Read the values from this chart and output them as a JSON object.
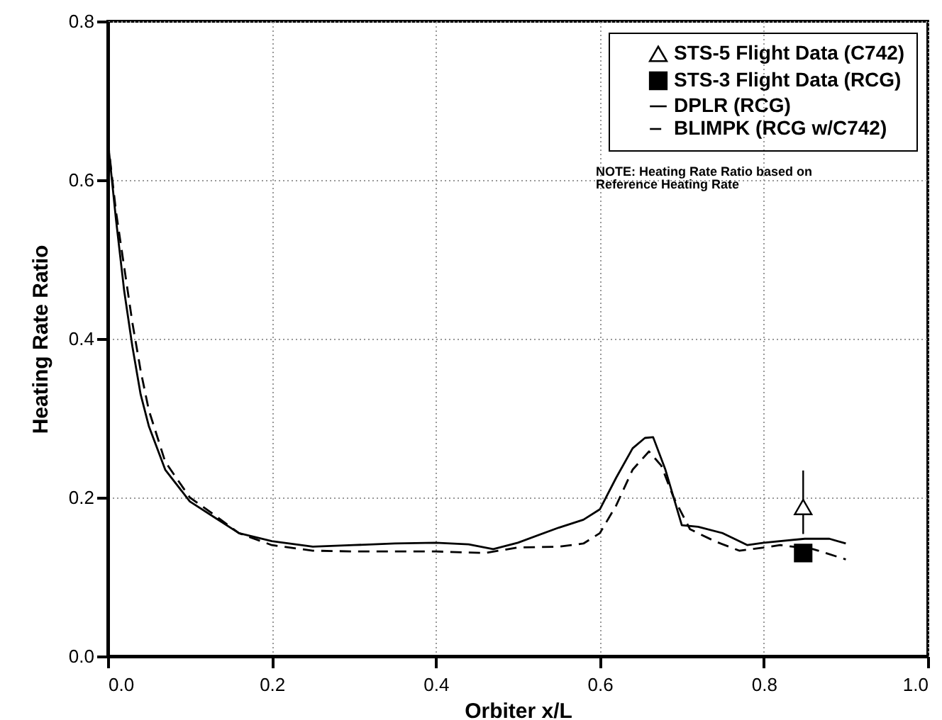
{
  "chart_data": {
    "type": "line",
    "xlabel": "Orbiter x/L",
    "ylabel": "Heating Rate Ratio",
    "xlim": [
      0,
      1
    ],
    "ylim": [
      0,
      0.8
    ],
    "xticks": [
      {
        "value": 0,
        "label": "0.0"
      },
      {
        "value": 0.2,
        "label": "0.2"
      },
      {
        "value": 0.4,
        "label": "0.4"
      },
      {
        "value": 0.6,
        "label": "0.6"
      },
      {
        "value": 0.8,
        "label": "0.8"
      },
      {
        "value": 1,
        "label": "1.0"
      }
    ],
    "yticks": [
      {
        "value": 0,
        "label": "0.0"
      },
      {
        "value": 0.2,
        "label": "0.2"
      },
      {
        "value": 0.4,
        "label": "0.4"
      },
      {
        "value": 0.6,
        "label": "0.6"
      },
      {
        "value": 0.8,
        "label": "0.8"
      }
    ],
    "grid": true,
    "legend": "top right",
    "annotations": [
      "NOTE: Heating Rate Ratio based on\nReference Heating Rate"
    ],
    "series": [
      {
        "name": "STS-5 Flight Data (C742)",
        "type": "scatter",
        "marker": "triangle",
        "color": "#000000",
        "x": [
          0.848
        ],
        "values": [
          0.188
        ],
        "errors": [
          [
            0.154,
            0.234
          ]
        ]
      },
      {
        "name": "STS-3 Flight Data (RCG)",
        "type": "scatter",
        "marker": "square",
        "color": "#000000",
        "x": [
          0.848
        ],
        "values": [
          0.13
        ],
        "errors": [
          [
            0.12,
            0.14
          ]
        ]
      },
      {
        "name": "DPLR (RCG)",
        "line_style": "solid",
        "color": "#000000",
        "x": [
          0,
          0.01,
          0.02,
          0.03,
          0.04,
          0.05,
          0.07,
          0.1,
          0.13,
          0.16,
          0.2,
          0.25,
          0.3,
          0.35,
          0.4,
          0.44,
          0.47,
          0.5,
          0.55,
          0.58,
          0.6,
          0.62,
          0.64,
          0.655,
          0.665,
          0.68,
          0.7,
          0.72,
          0.75,
          0.78,
          0.8,
          0.85,
          0.88,
          0.9
        ],
        "values": [
          0.65,
          0.55,
          0.46,
          0.39,
          0.33,
          0.29,
          0.235,
          0.195,
          0.175,
          0.155,
          0.145,
          0.138,
          0.14,
          0.142,
          0.143,
          0.141,
          0.135,
          0.143,
          0.162,
          0.172,
          0.185,
          0.225,
          0.262,
          0.275,
          0.276,
          0.235,
          0.165,
          0.163,
          0.155,
          0.14,
          0.143,
          0.148,
          0.148,
          0.142
        ]
      },
      {
        "name": "BLIMPK (RCG w/C742)",
        "line_style": "dashed",
        "color": "#000000",
        "x": [
          0,
          0.01,
          0.02,
          0.03,
          0.04,
          0.05,
          0.07,
          0.1,
          0.13,
          0.16,
          0.2,
          0.25,
          0.3,
          0.4,
          0.46,
          0.5,
          0.55,
          0.58,
          0.6,
          0.62,
          0.64,
          0.66,
          0.675,
          0.69,
          0.71,
          0.74,
          0.77,
          0.8,
          0.82,
          0.86,
          0.9
        ],
        "values": [
          0.65,
          0.56,
          0.49,
          0.42,
          0.36,
          0.31,
          0.245,
          0.2,
          0.178,
          0.155,
          0.14,
          0.133,
          0.132,
          0.132,
          0.13,
          0.137,
          0.138,
          0.142,
          0.155,
          0.19,
          0.235,
          0.258,
          0.24,
          0.2,
          0.16,
          0.145,
          0.133,
          0.137,
          0.14,
          0.135,
          0.122
        ]
      }
    ]
  }
}
